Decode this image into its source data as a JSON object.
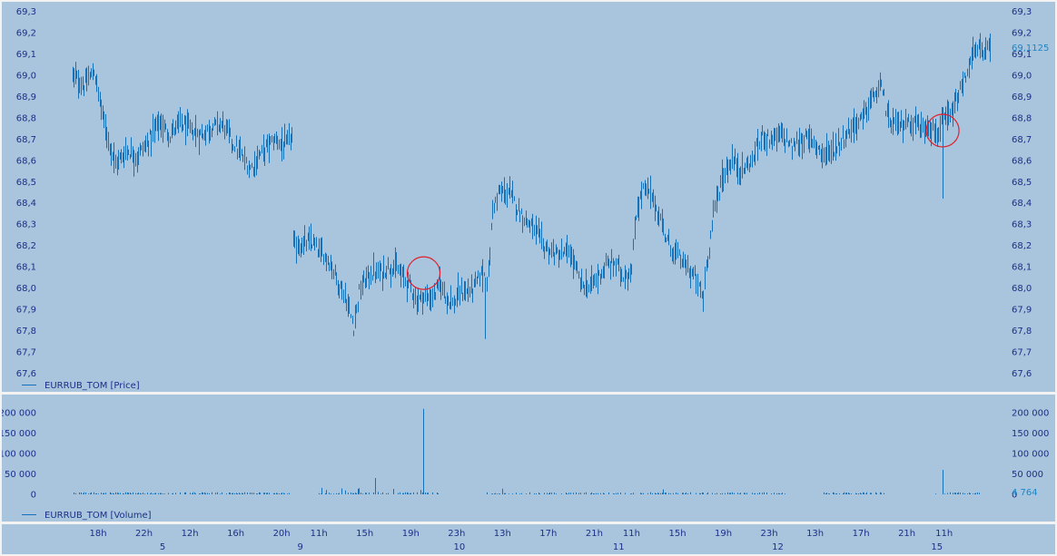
{
  "colors": {
    "background": "#a9c5de",
    "frame": "#f2f2f2",
    "bars": "#1672b8",
    "axis_text": "#1b2f86",
    "last_value": "#1a86c8",
    "highlight": "#e0202c"
  },
  "chart_data": [
    {
      "type": "ohlc",
      "panel": "price",
      "legend": "EURRUB_TOM [Price]",
      "ylim": [
        67.55,
        69.32
      ],
      "y_ticks": [
        "67,6",
        "67,7",
        "67,8",
        "67,9",
        "68,0",
        "68,1",
        "68,2",
        "68,3",
        "68,4",
        "68,5",
        "68,6",
        "68,7",
        "68,8",
        "68,9",
        "69,0",
        "69,1",
        "69,2",
        "69,3"
      ],
      "last_value": 69.1125,
      "last_value_label": "69,1125",
      "grid": false,
      "highlight_circles": [
        {
          "x": 245,
          "y": 68.07
        },
        {
          "x": 607,
          "y": 68.74
        }
      ],
      "sessions": [
        {
          "start": 0,
          "end": 153,
          "anchors": [
            [
              0,
              69.0
            ],
            [
              8,
              68.95
            ],
            [
              15,
              69.02
            ],
            [
              22,
              68.78
            ],
            [
              30,
              68.58
            ],
            [
              38,
              68.65
            ],
            [
              45,
              68.62
            ],
            [
              52,
              68.68
            ],
            [
              60,
              68.78
            ],
            [
              68,
              68.72
            ],
            [
              75,
              68.78
            ],
            [
              82,
              68.74
            ],
            [
              90,
              68.72
            ],
            [
              97,
              68.76
            ],
            [
              105,
              68.77
            ],
            [
              112,
              68.68
            ],
            [
              118,
              68.62
            ],
            [
              124,
              68.56
            ],
            [
              130,
              68.62
            ],
            [
              136,
              68.67
            ],
            [
              142,
              68.7
            ],
            [
              148,
              68.66
            ],
            [
              153,
              68.72
            ]
          ]
        },
        {
          "start": 154,
          "end": 255,
          "anchors": [
            [
              154,
              68.2
            ],
            [
              160,
              68.2
            ],
            [
              166,
              68.22
            ],
            [
              172,
              68.17
            ],
            [
              178,
              68.14
            ],
            [
              184,
              68.05
            ],
            [
              190,
              67.96
            ],
            [
              196,
              67.82
            ],
            [
              200,
              67.98
            ],
            [
              205,
              68.05
            ],
            [
              210,
              68.07
            ],
            [
              215,
              68.07
            ],
            [
              220,
              68.1
            ],
            [
              225,
              68.1
            ],
            [
              230,
              68.05
            ],
            [
              235,
              68.02
            ],
            [
              240,
              67.94
            ],
            [
              245,
              67.96
            ],
            [
              250,
              67.95
            ],
            [
              255,
              68.0
            ]
          ]
        },
        {
          "start": 256,
          "end": 347,
          "anchors": [
            [
              256,
              68.02
            ],
            [
              261,
              67.96
            ],
            [
              266,
              67.92
            ],
            [
              270,
              67.98
            ],
            [
              275,
              67.98
            ],
            [
              280,
              68.0
            ],
            [
              285,
              68.07
            ],
            [
              290,
              68.05
            ],
            [
              293,
              68.38
            ],
            [
              298,
              68.45
            ],
            [
              304,
              68.45
            ],
            [
              310,
              68.38
            ],
            [
              316,
              68.32
            ],
            [
              322,
              68.28
            ],
            [
              328,
              68.2
            ],
            [
              334,
              68.17
            ],
            [
              340,
              68.15
            ],
            [
              347,
              68.17
            ]
          ]
        },
        {
          "start": 348,
          "end": 440,
          "anchors": [
            [
              348,
              68.14
            ],
            [
              354,
              68.03
            ],
            [
              360,
              68.0
            ],
            [
              366,
              68.05
            ],
            [
              372,
              68.1
            ],
            [
              378,
              68.12
            ],
            [
              384,
              68.06
            ],
            [
              390,
              68.08
            ],
            [
              393,
              68.35
            ],
            [
              398,
              68.47
            ],
            [
              404,
              68.43
            ],
            [
              410,
              68.32
            ],
            [
              416,
              68.2
            ],
            [
              422,
              68.15
            ],
            [
              428,
              68.1
            ],
            [
              434,
              68.05
            ],
            [
              440,
              67.95
            ]
          ]
        },
        {
          "start": 441,
          "end": 566,
          "anchors": [
            [
              441,
              68.05
            ],
            [
              447,
              68.35
            ],
            [
              453,
              68.52
            ],
            [
              460,
              68.6
            ],
            [
              467,
              68.55
            ],
            [
              474,
              68.6
            ],
            [
              481,
              68.72
            ],
            [
              488,
              68.7
            ],
            [
              495,
              68.72
            ],
            [
              502,
              68.66
            ],
            [
              509,
              68.7
            ],
            [
              516,
              68.7
            ],
            [
              523,
              68.63
            ],
            [
              530,
              68.65
            ],
            [
              537,
              68.7
            ],
            [
              544,
              68.76
            ],
            [
              551,
              68.8
            ],
            [
              558,
              68.9
            ],
            [
              564,
              68.94
            ],
            [
              566,
              68.94
            ]
          ]
        },
        {
          "start": 567,
          "end": 640,
          "anchors": [
            [
              567,
              68.8
            ],
            [
              575,
              68.76
            ],
            [
              582,
              68.78
            ],
            [
              588,
              68.78
            ],
            [
              592,
              68.75
            ],
            [
              597,
              68.78
            ],
            [
              602,
              68.72
            ],
            [
              607,
              68.78
            ],
            [
              612,
              68.8
            ],
            [
              618,
              68.9
            ],
            [
              624,
              69.02
            ],
            [
              628,
              69.1
            ],
            [
              632,
              69.12
            ]
          ]
        }
      ]
    },
    {
      "type": "bar",
      "panel": "volume",
      "legend": "EURRUB_TOM [Volume]",
      "ylim": [
        0,
        225000
      ],
      "y_ticks": [
        0,
        50000,
        100000,
        150000,
        200000
      ],
      "y_tick_labels": [
        "0",
        "50 000",
        "100 000",
        "150 000",
        "200 000"
      ],
      "last_value": 4764,
      "last_value_label": "4 764",
      "baseline": 1500,
      "spikes": [
        {
          "x": 211,
          "value": 40000
        },
        {
          "x": 245,
          "value": 210000
        },
        {
          "x": 300,
          "value": 14000
        },
        {
          "x": 354,
          "value": 4000
        },
        {
          "x": 412,
          "value": 12000
        },
        {
          "x": 466,
          "value": 4000
        },
        {
          "x": 607,
          "value": 60000
        }
      ],
      "gaps": [
        [
          154,
          170
        ],
        [
          256,
          288
        ],
        [
          500,
          523
        ],
        [
          568,
          600
        ]
      ]
    }
  ],
  "x_axis": {
    "time_ticks": [
      {
        "x": 18,
        "label": "18h"
      },
      {
        "x": 50,
        "label": "22h"
      },
      {
        "x": 82,
        "label": "12h"
      },
      {
        "x": 114,
        "label": "16h"
      },
      {
        "x": 146,
        "label": "20h"
      },
      {
        "x": 172,
        "label": "11h"
      },
      {
        "x": 204,
        "label": "15h"
      },
      {
        "x": 236,
        "label": "19h"
      },
      {
        "x": 268,
        "label": "23h"
      },
      {
        "x": 300,
        "label": "13h"
      },
      {
        "x": 332,
        "label": "17h"
      },
      {
        "x": 364,
        "label": "21h"
      },
      {
        "x": 390,
        "label": "11h"
      },
      {
        "x": 422,
        "label": "15h"
      },
      {
        "x": 454,
        "label": "19h"
      },
      {
        "x": 486,
        "label": "23h"
      },
      {
        "x": 518,
        "label": "13h"
      },
      {
        "x": 550,
        "label": "17h"
      },
      {
        "x": 582,
        "label": "21h"
      },
      {
        "x": 608,
        "label": "11h"
      }
    ],
    "day_ticks": [
      {
        "x": 63,
        "label": "5"
      },
      {
        "x": 159,
        "label": "9"
      },
      {
        "x": 270,
        "label": "10"
      },
      {
        "x": 381,
        "label": "11"
      },
      {
        "x": 492,
        "label": "12"
      },
      {
        "x": 603,
        "label": "15"
      }
    ],
    "x_range": [
      -20,
      650
    ]
  }
}
